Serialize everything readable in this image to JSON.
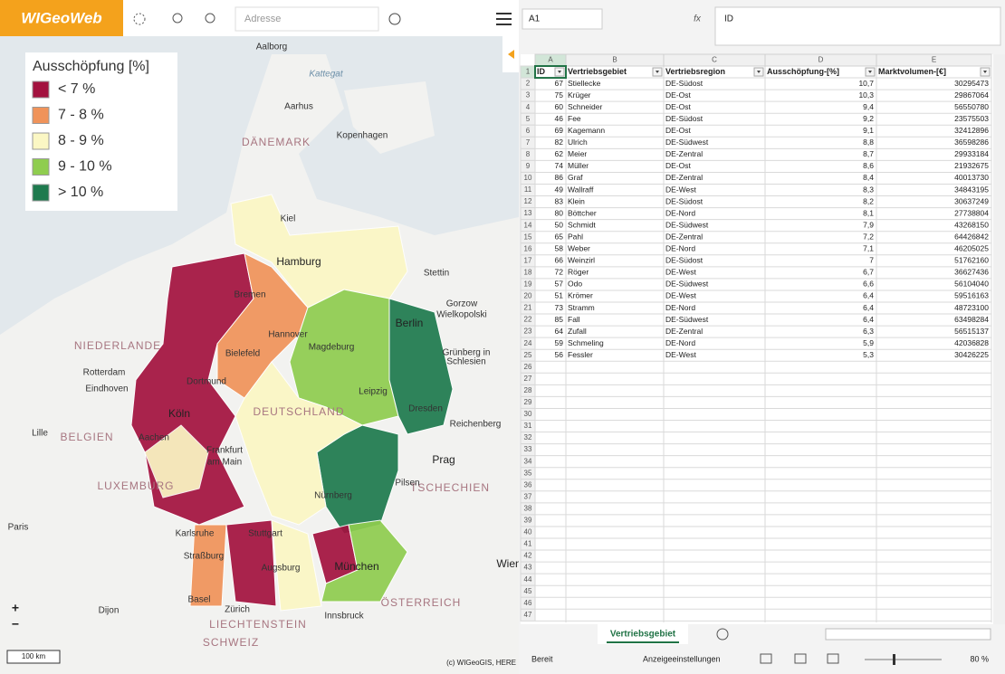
{
  "map": {
    "logo": "WIGeoWeb",
    "search_placeholder": "Adresse",
    "legend": {
      "title": "Ausschöpfung [%]",
      "items": [
        {
          "label": "< 7 %",
          "color": "#a3123f"
        },
        {
          "label": "7 - 8 %",
          "color": "#f0935a"
        },
        {
          "label": "8 - 9 %",
          "color": "#fbf7c4"
        },
        {
          "label": "9 - 10 %",
          "color": "#8fcd4f"
        },
        {
          "label": "> 10 %",
          "color": "#1e7a4e"
        }
      ]
    },
    "labels": [
      "Aalborg",
      "Kattegat",
      "Aarhus",
      "DÄNEMARK",
      "Kopenhagen",
      "Kiel",
      "Hamburg",
      "Stettin",
      "Bremen",
      "Hannover",
      "Berlin",
      "Magdeburg",
      "Bielefeld",
      "NIEDERLANDE",
      "Rotterdam",
      "Eindhoven",
      "Dortmund",
      "Leipzig",
      "Dresden",
      "DEUTSCHLAND",
      "Köln",
      "BELGIEN",
      "Lille",
      "Aachen",
      "Frankfurt",
      "am Main",
      "Prag",
      "LUXEMBURG",
      "TSCHECHIEN",
      "Nürnberg",
      "Paris",
      "Karlsruhe",
      "Stuttgart",
      "Straßburg",
      "Augsburg",
      "München",
      "ÖSTERREICH",
      "Zürich",
      "Basel",
      "LIECHTENSTEIN",
      "SCHWEIZ",
      "Dijon",
      "Innsbruck",
      "Gorzow",
      "Wielkopolski",
      "Grünberg in",
      "Schlesien",
      "Reichenberg",
      "Pilsen",
      "Wien"
    ],
    "zoom_in": "+",
    "zoom_out": "−",
    "scale": "100 km",
    "attribution": "(c) WIGeoGIS, HERE"
  },
  "sheet": {
    "name_box": "A1",
    "formula": "ID",
    "columns": [
      "A",
      "B",
      "C",
      "D",
      "E"
    ],
    "headers": [
      "ID",
      "Vertriebsgebiet",
      "Vertriebsregion",
      "Ausschöpfung-[%]",
      "Marktvolumen-[€]"
    ],
    "rows": [
      [
        67,
        "Stiellecke",
        "DE-Südost",
        "10,7",
        30295473
      ],
      [
        75,
        "Krüger",
        "DE-Ost",
        "10,3",
        29867064
      ],
      [
        60,
        "Schneider",
        "DE-Ost",
        "9,4",
        56550780
      ],
      [
        46,
        "Fee",
        "DE-Südost",
        "9,2",
        23575503
      ],
      [
        69,
        "Kagemann",
        "DE-Ost",
        "9,1",
        32412896
      ],
      [
        82,
        "Ulrich",
        "DE-Südwest",
        "8,8",
        36598286
      ],
      [
        62,
        "Meier",
        "DE-Zentral",
        "8,7",
        29933184
      ],
      [
        74,
        "Müller",
        "DE-Ost",
        "8,6",
        21932675
      ],
      [
        86,
        "Graf",
        "DE-Zentral",
        "8,4",
        40013730
      ],
      [
        49,
        "Wallraff",
        "DE-West",
        "8,3",
        34843195
      ],
      [
        83,
        "Klein",
        "DE-Südost",
        "8,2",
        30637249
      ],
      [
        80,
        "Böttcher",
        "DE-Nord",
        "8,1",
        27738804
      ],
      [
        50,
        "Schmidt",
        "DE-Südwest",
        "7,9",
        43268150
      ],
      [
        65,
        "Pahl",
        "DE-Zentral",
        "7,2",
        64426842
      ],
      [
        58,
        "Weber",
        "DE-Nord",
        "7,1",
        46205025
      ],
      [
        66,
        "Weinzirl",
        "DE-Südost",
        "7",
        51762160
      ],
      [
        72,
        "Röger",
        "DE-West",
        "6,7",
        36627436
      ],
      [
        57,
        "Odo",
        "DE-Südwest",
        "6,6",
        56104040
      ],
      [
        51,
        "Krömer",
        "DE-West",
        "6,4",
        59516163
      ],
      [
        73,
        "Stramm",
        "DE-Nord",
        "6,4",
        48723100
      ],
      [
        85,
        "Fall",
        "DE-Südwest",
        "6,4",
        63498284
      ],
      [
        64,
        "Zufall",
        "DE-Zentral",
        "6,3",
        56515137
      ],
      [
        59,
        "Schmeling",
        "DE-Nord",
        "5,9",
        42036828
      ],
      [
        56,
        "Fessler",
        "DE-West",
        "5,3",
        30426225
      ]
    ],
    "row_numbers": [
      1,
      2,
      3,
      4,
      5,
      6,
      7,
      8,
      9,
      10,
      11,
      12,
      13,
      14,
      15,
      16,
      17,
      18,
      19,
      20,
      21,
      22,
      23,
      24,
      25,
      26,
      27,
      28,
      29,
      30,
      31,
      32,
      33,
      34,
      35,
      36,
      37,
      38,
      39,
      40,
      41,
      42,
      43,
      44,
      45,
      46,
      47
    ],
    "tab": "Vertriebsgebiet",
    "status": "Bereit",
    "display_settings": "Anzeigeeinstellungen",
    "zoom": "80 %"
  }
}
